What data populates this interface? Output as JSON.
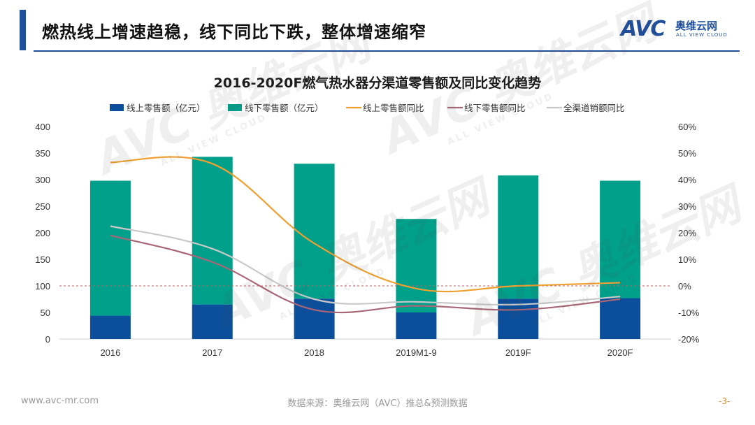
{
  "header": {
    "title": "燃热线上增速趋稳，线下同比下跌，整体增速缩窄",
    "logo_text": "AVC",
    "logo_cn": "奥维云网",
    "logo_en": "ALL VIEW CLOUD"
  },
  "chart_data": {
    "type": "bar",
    "title": "2016-2020F燃气热水器分渠道零售额及同比变化趋势",
    "categories": [
      "2016",
      "2017",
      "2018",
      "2019M1-9",
      "2019F",
      "2020F"
    ],
    "ylim": [
      0,
      400
    ],
    "yticks": [
      "0",
      "50",
      "100",
      "150",
      "200",
      "250",
      "300",
      "350",
      "400"
    ],
    "y2lim": [
      -0.2,
      0.6
    ],
    "y2ticks": [
      "-20%",
      "-10%",
      "0%",
      "10%",
      "20%",
      "30%",
      "40%",
      "50%",
      "60%"
    ],
    "series": [
      {
        "name": "线上零售额（亿元）",
        "kind": "bar",
        "color": "#0b4f9c",
        "values": [
          44,
          65,
          76,
          50,
          76,
          77
        ]
      },
      {
        "name": "线下零售额（亿元）",
        "kind": "bar",
        "color": "#00a08a",
        "values": [
          254,
          278,
          254,
          176,
          232,
          221
        ]
      },
      {
        "name": "线上零售额同比",
        "kind": "line",
        "color": "#f0a030",
        "axis": "right",
        "values": [
          0.465,
          0.46,
          0.16,
          -0.01,
          0.0,
          0.012
        ]
      },
      {
        "name": "线下零售额同比",
        "kind": "line",
        "color": "#a86676",
        "axis": "right",
        "values": [
          0.19,
          0.09,
          -0.09,
          -0.075,
          -0.09,
          -0.05
        ]
      },
      {
        "name": "全渠道销额同比",
        "kind": "line",
        "color": "#c9c9c9",
        "axis": "right",
        "values": [
          0.225,
          0.14,
          -0.05,
          -0.06,
          -0.07,
          -0.04
        ]
      }
    ],
    "reference_line": {
      "value": 0,
      "color": "#e05050"
    }
  },
  "footer": {
    "website": "www.avc-mr.com",
    "source": "数据来源：奥维云网（AVC）推总&预测数据",
    "page": "-3-"
  },
  "watermark": {
    "text": "AVC 奥维云网",
    "sub": "ALL VIEW CLOUD"
  }
}
